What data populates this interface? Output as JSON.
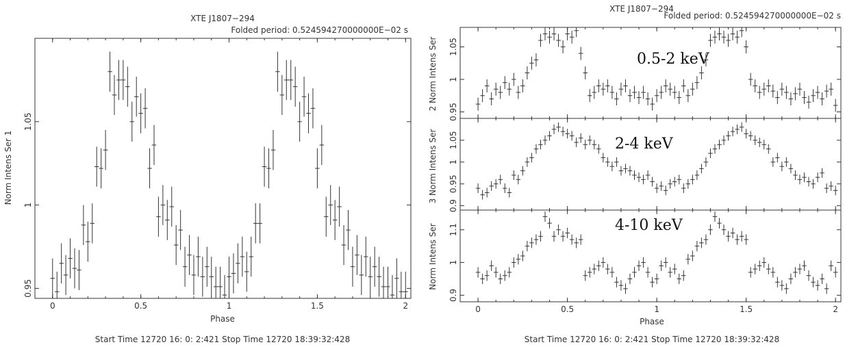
{
  "chart_data": [
    {
      "type": "scatter",
      "title": "XTE J1807−294",
      "subtitle": "Folded period: 0.524594270000000E−02 s",
      "xlabel": "Phase",
      "ylabel": "Norm Intens Ser  1",
      "footer": "Start Time 12720 16: 0: 2:421    Stop Time 12720 18:39:32:428",
      "xlim": [
        -0.1,
        2.03
      ],
      "ylim": [
        0.944,
        1.1
      ],
      "xticks": [
        "0",
        "0.5",
        "1",
        "1.5",
        "2"
      ],
      "yticks": [
        "0.95",
        "1",
        "1.05"
      ],
      "series": [
        {
          "x": [
            0.0,
            0.025,
            0.05,
            0.075,
            0.1,
            0.125,
            0.15,
            0.175,
            0.2,
            0.225,
            0.25,
            0.275,
            0.3,
            0.325,
            0.35,
            0.375,
            0.4,
            0.425,
            0.45,
            0.475,
            0.5,
            0.525,
            0.55,
            0.575,
            0.6,
            0.625,
            0.65,
            0.675,
            0.7,
            0.725,
            0.75,
            0.775,
            0.8,
            0.825,
            0.85,
            0.875,
            0.9,
            0.925,
            0.95,
            0.975,
            1.0,
            1.025,
            1.05,
            1.075,
            1.1,
            1.125,
            1.15,
            1.175,
            1.2,
            1.225,
            1.25,
            1.275,
            1.3,
            1.325,
            1.35,
            1.375,
            1.4,
            1.425,
            1.45,
            1.475,
            1.5,
            1.525,
            1.55,
            1.575,
            1.6,
            1.625,
            1.65,
            1.675,
            1.7,
            1.725,
            1.75,
            1.775,
            1.8,
            1.825,
            1.85,
            1.875,
            1.9,
            1.925,
            1.95,
            1.975,
            2.0
          ],
          "y": [
            0.956,
            0.948,
            0.965,
            0.958,
            0.968,
            0.962,
            0.961,
            0.988,
            0.978,
            0.989,
            1.023,
            1.022,
            1.033,
            1.08,
            1.066,
            1.075,
            1.075,
            1.071,
            1.05,
            1.065,
            1.055,
            1.058,
            1.022,
            1.036,
            0.993,
            1.0,
            0.991,
            0.999,
            0.976,
            0.985,
            0.963,
            0.97,
            0.958,
            0.969,
            0.957,
            0.963,
            0.957,
            0.951,
            0.951,
            0.946,
            0.957,
            0.959,
            0.965,
            0.969,
            0.96,
            0.969,
            0.989,
            0.989,
            1.023,
            1.022,
            1.033,
            1.08,
            1.066,
            1.075,
            1.075,
            1.071,
            1.05,
            1.065,
            1.055,
            1.058,
            1.022,
            1.036,
            0.993,
            1.0,
            0.991,
            0.999,
            0.976,
            0.985,
            0.963,
            0.97,
            0.958,
            0.969,
            0.957,
            0.963,
            0.957,
            0.951,
            0.951,
            0.946,
            0.956,
            0.948,
            0.948
          ],
          "err": 0.012
        }
      ]
    },
    {
      "type": "scatter",
      "title": "XTE J1807−294",
      "subtitle": "Folded period: 0.524594270000000E−02 s",
      "xlabel": "Phase",
      "footer": "Start Time 12720 16: 0: 2:421    Stop Time 12720 18:39:32:428",
      "xlim": [
        -0.1,
        2.03
      ],
      "xticks": [
        "0",
        "0.5",
        "1",
        "1.5",
        "2"
      ],
      "panels": [
        {
          "band_label": "0.5-2 keV",
          "ylabel": "2 Norm Intens Ser",
          "ylim": [
            0.94,
            1.08
          ],
          "yticks": [
            "0.95",
            "1",
            "1.05"
          ],
          "y": [
            0.962,
            0.975,
            0.99,
            0.97,
            0.985,
            0.98,
            0.995,
            0.985,
            1.0,
            0.98,
            0.99,
            1.01,
            1.025,
            1.03,
            1.06,
            1.07,
            1.065,
            1.07,
            1.06,
            1.05,
            1.07,
            1.065,
            1.075,
            1.04,
            1.01,
            0.975,
            0.98,
            0.99,
            0.985,
            0.99,
            0.98,
            0.97,
            0.985,
            0.99,
            0.975,
            0.98,
            0.972,
            0.98,
            0.97,
            0.962,
            0.975,
            0.98,
            0.99,
            0.985,
            0.98,
            0.972,
            0.99,
            0.975,
            0.985,
            0.995,
            1.01,
            1.03,
            1.06,
            1.065,
            1.07,
            1.065,
            1.06,
            1.07,
            1.065,
            1.075,
            1.05,
            1.0,
            0.99,
            0.98,
            0.985,
            0.99,
            0.982,
            0.972,
            0.985,
            0.98,
            0.97,
            0.978,
            0.985,
            0.972,
            0.965,
            0.975,
            0.98,
            0.97,
            0.982,
            0.985,
            0.96
          ],
          "err": 0.01
        },
        {
          "band_label": "2-4 keV",
          "ylabel": "3 Norm Intens Ser",
          "ylim": [
            0.89,
            1.1
          ],
          "yticks": [
            "0.9",
            "0.95",
            "1",
            "1.05"
          ],
          "y": [
            0.94,
            0.925,
            0.93,
            0.945,
            0.95,
            0.96,
            0.94,
            0.93,
            0.97,
            0.96,
            0.98,
            1.0,
            1.01,
            1.03,
            1.04,
            1.05,
            1.06,
            1.075,
            1.08,
            1.07,
            1.065,
            1.06,
            1.045,
            1.055,
            1.04,
            1.05,
            1.04,
            1.03,
            1.01,
            1.0,
            0.99,
            1.0,
            0.98,
            0.985,
            0.98,
            0.97,
            0.965,
            0.96,
            0.97,
            0.955,
            0.94,
            0.945,
            0.935,
            0.95,
            0.955,
            0.96,
            0.94,
            0.95,
            0.96,
            0.97,
            0.985,
            1.0,
            1.02,
            1.03,
            1.04,
            1.05,
            1.06,
            1.07,
            1.075,
            1.08,
            1.065,
            1.06,
            1.05,
            1.045,
            1.04,
            1.03,
            1.0,
            1.01,
            0.99,
            1.0,
            0.985,
            0.97,
            0.96,
            0.965,
            0.955,
            0.95,
            0.965,
            0.975,
            0.94,
            0.945,
            0.935
          ],
          "err": 0.011
        },
        {
          "band_label": "4-10 keV",
          "ylabel": "Norm Intens Ser",
          "ylim": [
            0.88,
            1.16
          ],
          "yticks": [
            "0.9",
            "1",
            "1.1"
          ],
          "y": [
            0.97,
            0.95,
            0.96,
            0.99,
            0.97,
            0.95,
            0.96,
            0.97,
            1.0,
            1.01,
            1.02,
            1.05,
            1.06,
            1.07,
            1.08,
            1.14,
            1.12,
            1.08,
            1.1,
            1.08,
            1.09,
            1.07,
            1.06,
            1.07,
            0.96,
            0.97,
            0.98,
            0.99,
            1.0,
            0.98,
            0.97,
            0.94,
            0.93,
            0.92,
            0.95,
            0.97,
            0.99,
            1.0,
            0.97,
            0.94,
            0.95,
            0.99,
            1.0,
            0.97,
            0.98,
            0.95,
            0.96,
            1.01,
            1.02,
            1.05,
            1.06,
            1.07,
            1.1,
            1.14,
            1.12,
            1.1,
            1.08,
            1.09,
            1.07,
            1.08,
            1.07,
            0.97,
            0.98,
            0.99,
            1.0,
            0.98,
            0.97,
            0.94,
            0.93,
            0.92,
            0.95,
            0.97,
            0.98,
            0.99,
            0.96,
            0.94,
            0.93,
            0.95,
            0.92,
            0.99,
            0.97
          ],
          "err": 0.016
        }
      ]
    }
  ]
}
